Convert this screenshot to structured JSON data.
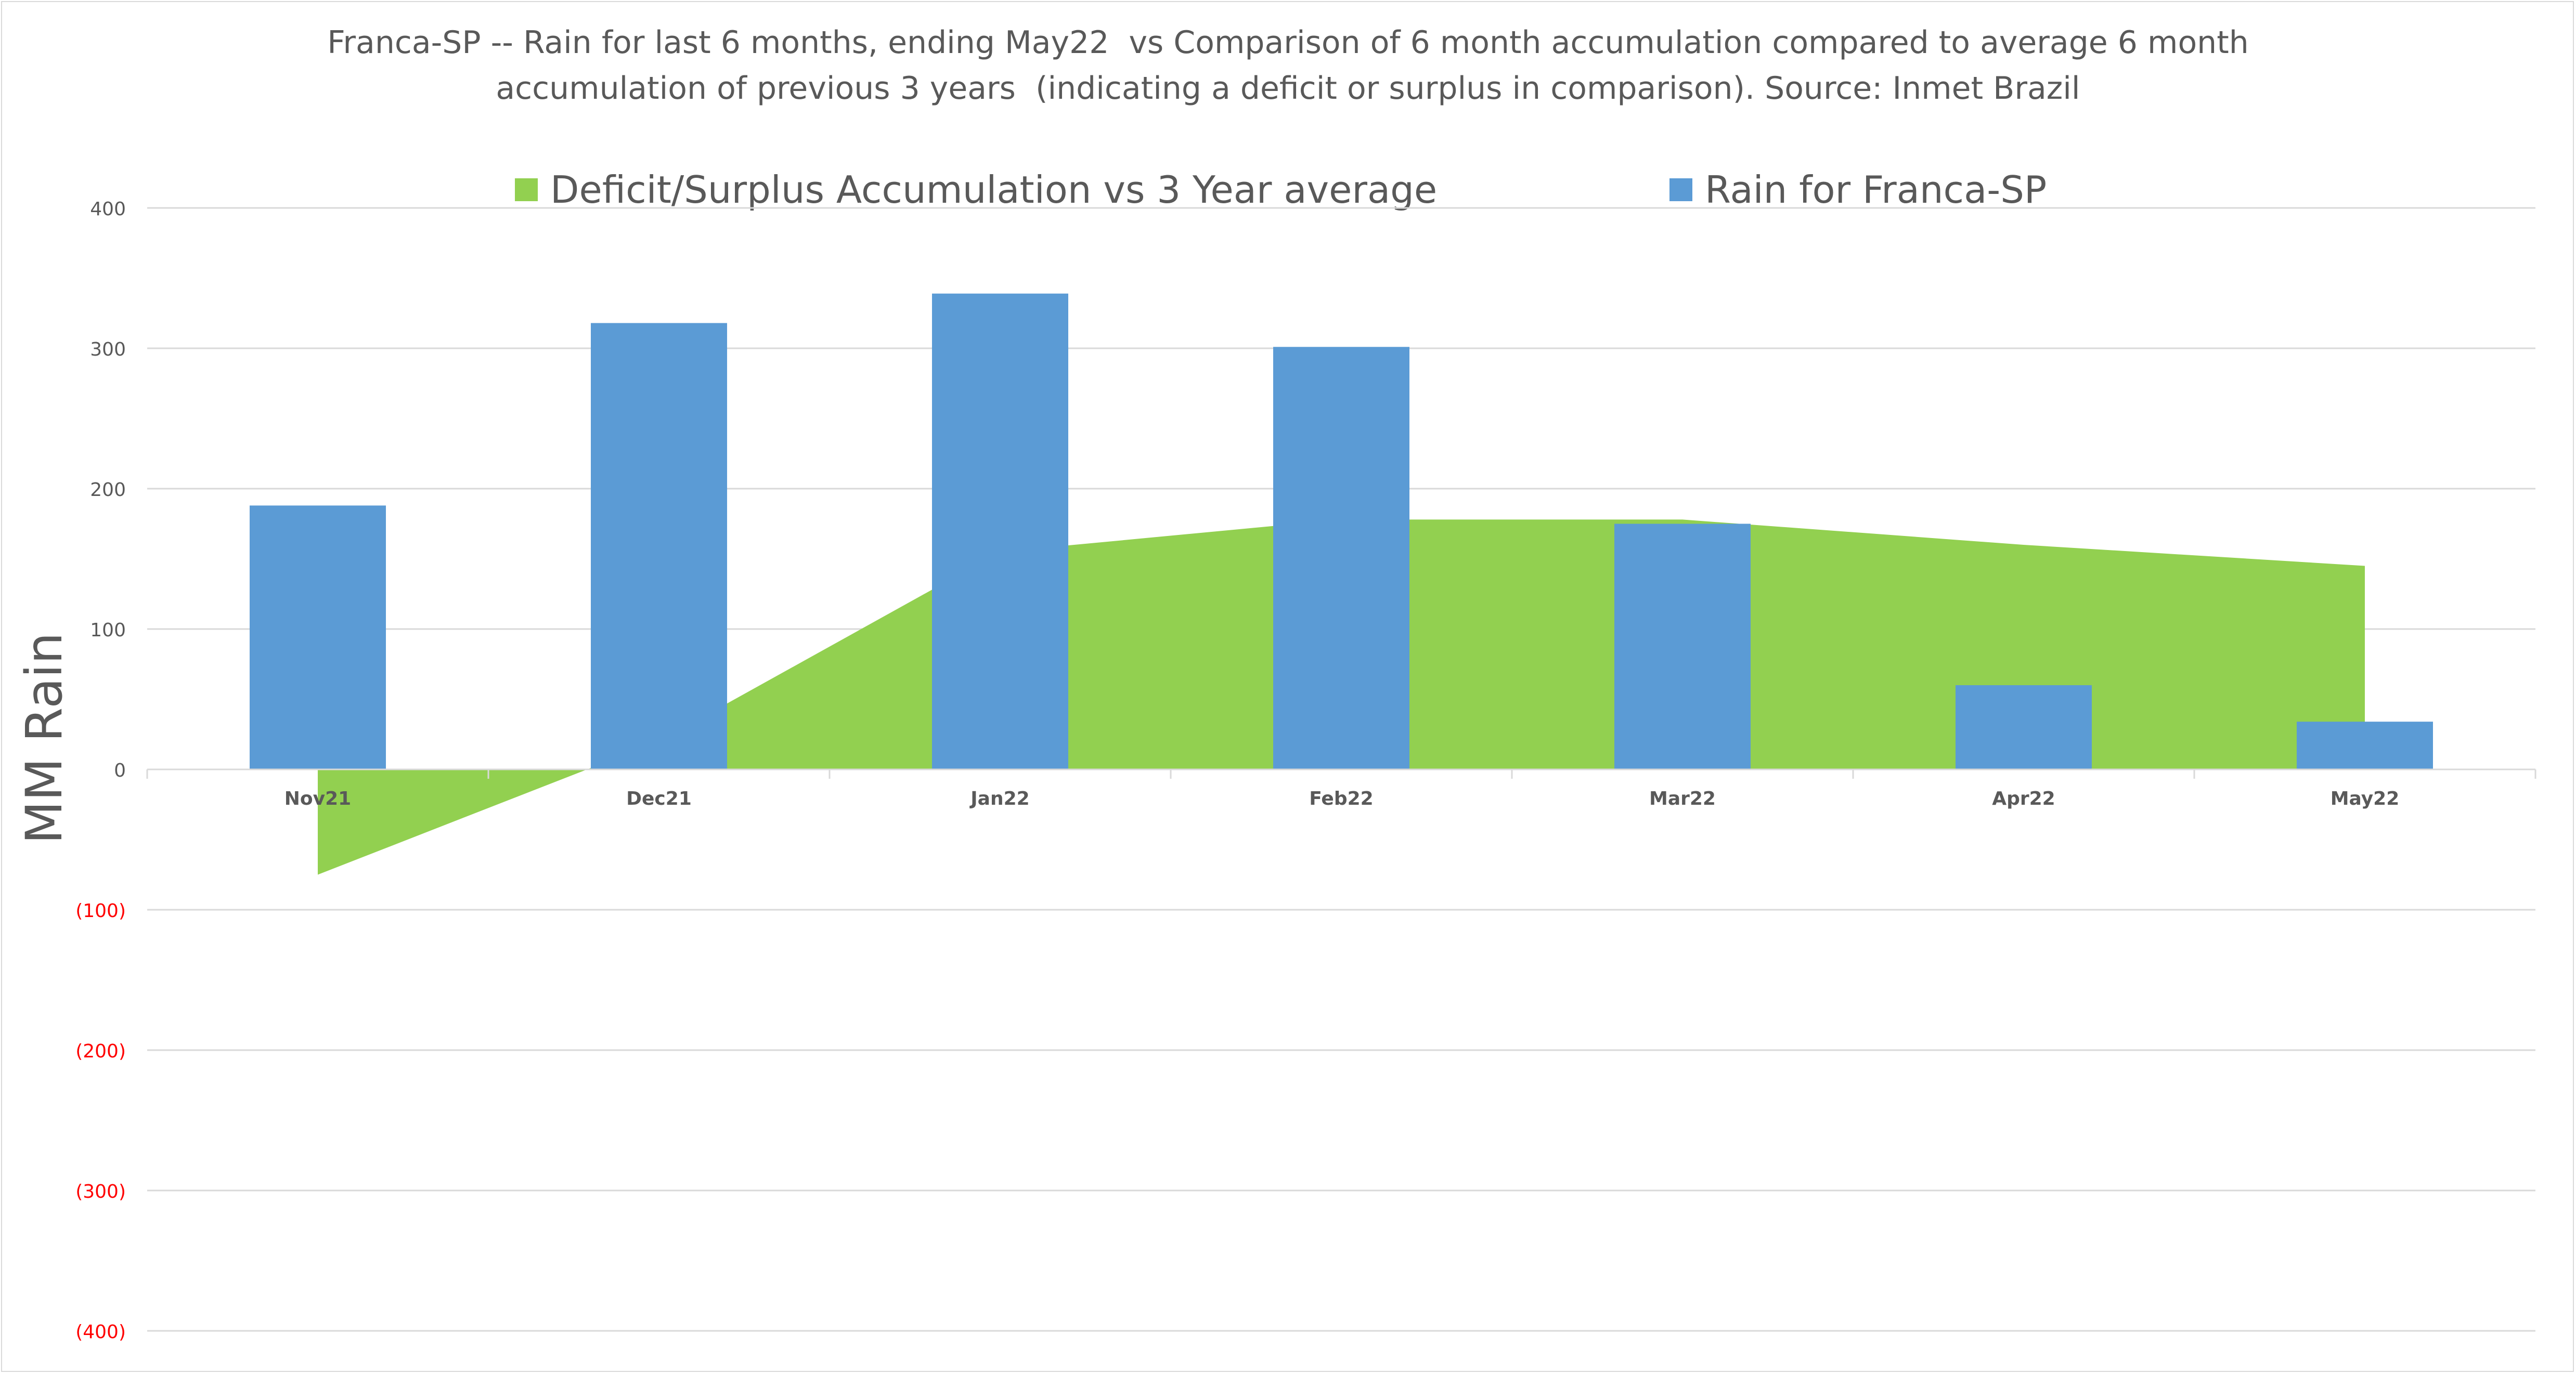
{
  "chart_data": {
    "type": "bar",
    "title_lines": [
      "Franca-SP -- Rain for last 6 months, ending May22  vs Comparison of 6 month accumulation compared to average 6 month",
      "accumulation of previous 3 years  (indicating a deficit or surplus in comparison). Source: Inmet Brazil"
    ],
    "ylabel": "MM Rain",
    "xlabel": "",
    "categories": [
      "Nov21",
      "Dec21",
      "Jan22",
      "Feb22",
      "Mar22",
      "Apr22",
      "May22"
    ],
    "ylim": [
      -400,
      400
    ],
    "yticks": [
      400,
      300,
      200,
      100,
      0,
      -100,
      -200,
      -300,
      -400
    ],
    "ytick_labels": [
      "400",
      "300",
      "200",
      "100",
      "0",
      "(100)",
      "(200)",
      "(300)",
      "(400)"
    ],
    "grid": true,
    "legend_position": "top",
    "series": [
      {
        "name": "Deficit/Surplus Accumulation vs 3 Year average",
        "type": "area",
        "color": "#92d050",
        "values": [
          -75,
          20,
          155,
          178,
          178,
          160,
          145
        ]
      },
      {
        "name": "Rain for Franca-SP",
        "type": "bar",
        "color": "#5b9bd5",
        "values": [
          188,
          318,
          339,
          301,
          175,
          60,
          34
        ]
      }
    ],
    "colors": {
      "axis_text": "#595959",
      "negative_tick_text": "#ff0000",
      "gridline": "#d9d9d9"
    }
  }
}
